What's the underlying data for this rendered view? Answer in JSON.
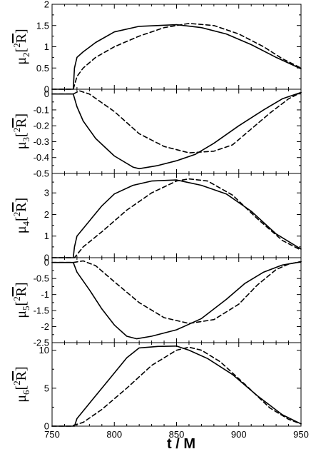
{
  "chart_data": {
    "type": "line",
    "xlabel": "t / M",
    "xlim": [
      750,
      950
    ],
    "x_ticks": [
      750,
      800,
      850,
      900,
      950
    ],
    "x_tick_labels": [
      "750",
      "800",
      "850",
      "900",
      "950"
    ],
    "grid": false,
    "series_styles": [
      {
        "style": "solid",
        "color": "#000000"
      },
      {
        "style": "dashed",
        "color": "#000000"
      }
    ],
    "panels": [
      {
        "ylabel_pre": "μ",
        "ylabel_sub": "2",
        "ylabel_sup": "2",
        "ylabel_post": "[",
        "ylabel_bar": "R",
        "ylabel_end": "]",
        "ylim": [
          0,
          2
        ],
        "y_ticks": [
          0,
          0.5,
          1,
          1.5,
          2
        ],
        "y_tick_labels": [
          "0",
          "0.5",
          "1",
          "1.5",
          "2"
        ],
        "series": [
          {
            "x": [
              750,
              767,
              768,
              770,
              775,
              785,
              800,
              820,
              850,
              870,
              890,
              910,
              930,
              950
            ],
            "y": [
              0,
              0,
              0.5,
              0.75,
              0.88,
              1.1,
              1.35,
              1.48,
              1.52,
              1.45,
              1.3,
              1.05,
              0.75,
              0.48
            ]
          },
          {
            "x": [
              750,
              767,
              770,
              775,
              785,
              800,
              820,
              840,
              860,
              880,
              900,
              920,
              935,
              950
            ],
            "y": [
              0,
              0,
              0.3,
              0.5,
              0.75,
              1.0,
              1.25,
              1.45,
              1.55,
              1.5,
              1.3,
              1.0,
              0.72,
              0.5
            ]
          }
        ]
      },
      {
        "ylabel_pre": "μ",
        "ylabel_sub": "3",
        "ylabel_sup": "2",
        "ylabel_post": "[",
        "ylabel_bar": "R",
        "ylabel_end": "]",
        "ylim": [
          -0.5,
          0.03
        ],
        "y_ticks": [
          -0.5,
          -0.4,
          -0.3,
          -0.2,
          -0.1,
          0
        ],
        "y_tick_labels": [
          "-0.5",
          "-0.4",
          "-0.3",
          "-0.2",
          "-0.1",
          "0"
        ],
        "series": [
          {
            "x": [
              750,
              767,
              770,
              775,
              785,
              800,
              815,
              820,
              835,
              850,
              865,
              880,
              900,
              920,
              935,
              950
            ],
            "y": [
              0,
              0,
              -0.08,
              -0.17,
              -0.28,
              -0.39,
              -0.46,
              -0.47,
              -0.45,
              -0.42,
              -0.38,
              -0.31,
              -0.2,
              -0.1,
              -0.03,
              0.01
            ]
          },
          {
            "x": [
              750,
              767,
              772,
              780,
              800,
              820,
              840,
              860,
              880,
              895,
              910,
              925,
              940,
              950
            ],
            "y": [
              0,
              0,
              0.02,
              0.0,
              -0.11,
              -0.25,
              -0.33,
              -0.37,
              -0.36,
              -0.32,
              -0.22,
              -0.12,
              -0.03,
              0.01
            ]
          }
        ]
      },
      {
        "ylabel_pre": "μ",
        "ylabel_sub": "4",
        "ylabel_sup": "2",
        "ylabel_post": "[",
        "ylabel_bar": "R",
        "ylabel_end": "]",
        "ylim": [
          0,
          3.9
        ],
        "y_ticks": [
          0,
          1,
          2,
          3
        ],
        "y_tick_labels": [
          "0",
          "1",
          "2",
          "3"
        ],
        "series": [
          {
            "x": [
              750,
              767,
              768,
              770,
              780,
              790,
              800,
              815,
              830,
              850,
              870,
              890,
              910,
              930,
              950
            ],
            "y": [
              0,
              0,
              0.5,
              1.0,
              1.7,
              2.4,
              2.95,
              3.35,
              3.55,
              3.6,
              3.35,
              2.95,
              2.15,
              1.1,
              0.4
            ]
          },
          {
            "x": [
              750,
              768,
              775,
              790,
              810,
              830,
              850,
              860,
              875,
              895,
              915,
              935,
              950
            ],
            "y": [
              0,
              0,
              0.5,
              1.2,
              2.2,
              3.0,
              3.55,
              3.65,
              3.55,
              2.9,
              1.8,
              0.8,
              0.35
            ]
          }
        ]
      },
      {
        "ylabel_pre": "μ",
        "ylabel_sub": "5",
        "ylabel_sup": "2",
        "ylabel_post": "[",
        "ylabel_bar": "R",
        "ylabel_end": "]",
        "ylim": [
          -2.5,
          0.15
        ],
        "y_ticks": [
          -2.5,
          -2,
          -1.5,
          -1,
          -0.5,
          0
        ],
        "y_tick_labels": [
          "-2.5",
          "-2",
          "-1.5",
          "-1",
          "-0.5",
          "0"
        ],
        "series": [
          {
            "x": [
              750,
              767,
              770,
              780,
              790,
              800,
              810,
              818,
              830,
              850,
              870,
              890,
              905,
              920,
              935,
              950
            ],
            "y": [
              0,
              0,
              -0.3,
              -0.85,
              -1.45,
              -1.95,
              -2.3,
              -2.38,
              -2.3,
              -2.1,
              -1.75,
              -1.15,
              -0.65,
              -0.3,
              -0.08,
              0.02
            ]
          },
          {
            "x": [
              750,
              767,
              775,
              785,
              800,
              820,
              840,
              860,
              880,
              900,
              915,
              930,
              940,
              950
            ],
            "y": [
              0,
              0,
              0.05,
              -0.1,
              -0.6,
              -1.25,
              -1.72,
              -1.9,
              -1.78,
              -1.3,
              -0.7,
              -0.22,
              -0.05,
              0.03
            ]
          }
        ]
      },
      {
        "ylabel_pre": "μ",
        "ylabel_sub": "6",
        "ylabel_sup": "2",
        "ylabel_post": "[",
        "ylabel_bar": "R",
        "ylabel_end": "]",
        "ylim": [
          0,
          11
        ],
        "y_ticks": [
          0,
          5,
          10
        ],
        "y_tick_labels": [
          "0",
          "5",
          "10"
        ],
        "series": [
          {
            "x": [
              750,
              768,
              770,
              780,
              795,
              810,
              820,
              835,
              850,
              860,
              875,
              895,
              915,
              935,
              950
            ],
            "y": [
              0,
              0,
              1.0,
              3.0,
              6.0,
              9.0,
              10.3,
              10.5,
              10.55,
              10.0,
              8.9,
              6.8,
              4.0,
              1.5,
              0.3
            ]
          },
          {
            "x": [
              750,
              765,
              775,
              790,
              810,
              830,
              850,
              860,
              870,
              885,
              905,
              925,
              940,
              950
            ],
            "y": [
              0,
              0,
              0.5,
              2.2,
              5.0,
              8.0,
              10.0,
              10.4,
              10.0,
              8.5,
              5.5,
              2.4,
              0.9,
              0.3
            ]
          }
        ]
      }
    ]
  }
}
